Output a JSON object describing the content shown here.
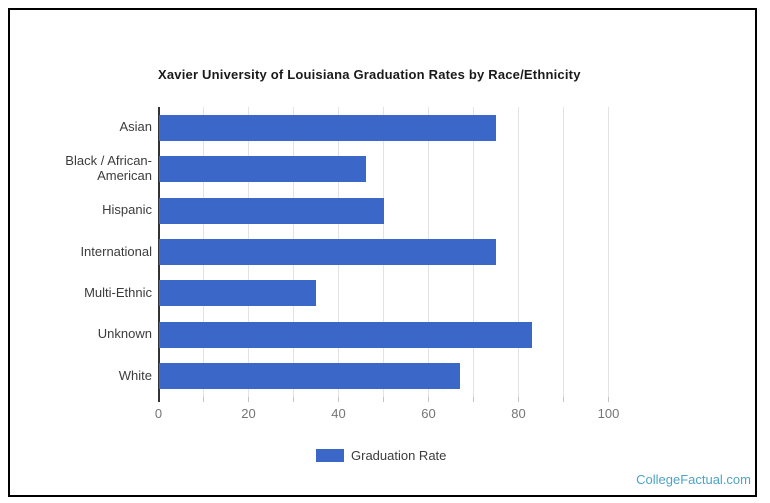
{
  "page": {
    "watermark": "CollegeFactual.com"
  },
  "colors": {
    "bar": "#3b68c8",
    "watermark": "#4ea3c4",
    "border": "#000000",
    "title": "#1a1a1a",
    "category_label": "#3c3c3c",
    "axis_label": "#757575",
    "legend_label": "#3c3c3c",
    "axis_line": "#333333",
    "gridline": "#e3e3e3",
    "tick": "#c4c4c4"
  },
  "legend": {
    "label": "Graduation Rate"
  },
  "chart_data": {
    "type": "bar",
    "orientation": "horizontal",
    "title": "Xavier University of Louisiana Graduation Rates by Race/Ethnicity",
    "categories": [
      "Asian",
      "Black / African-American",
      "Hispanic",
      "International",
      "Multi-Ethnic",
      "Unknown",
      "White"
    ],
    "series": [
      {
        "name": "Graduation Rate",
        "values": [
          75,
          46,
          50,
          75,
          35,
          83,
          67
        ]
      }
    ],
    "xlabel": "",
    "ylabel": "",
    "xlim": [
      0,
      100
    ],
    "x_ticks": [
      0,
      20,
      40,
      60,
      80,
      100
    ],
    "gridline_step": 10,
    "grid": true,
    "legend_position": "bottom",
    "bar_color": "#3b68c8"
  }
}
